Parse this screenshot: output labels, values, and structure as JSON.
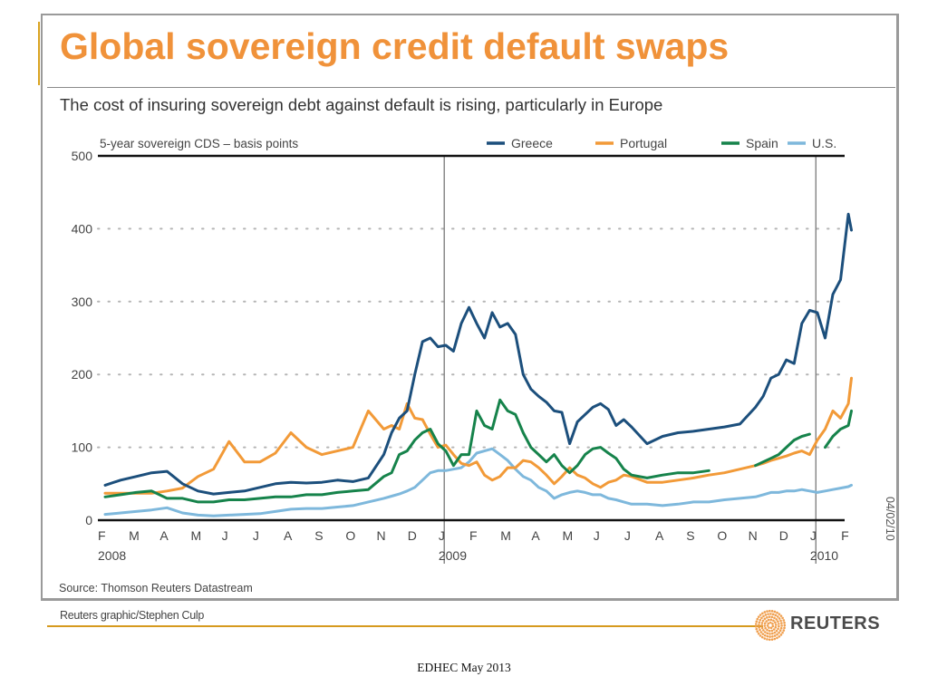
{
  "slide": {
    "footer": "EDHEC May 2013"
  },
  "graphic": {
    "title": "Global sovereign credit default swaps",
    "subtitle": "The cost of insuring sovereign debt against default is rising, particularly in Europe",
    "source": "Source: Thomson Reuters Datastream",
    "credit": "Reuters graphic/Stephen Culp",
    "logo_text": "REUTERS",
    "date_stamp": "04/02/10"
  },
  "chart_data": {
    "type": "line",
    "title": "Global sovereign credit default swaps",
    "subtitle": "The cost of insuring sovereign debt against default is rising, particularly in Europe",
    "ylabel": "5-year sovereign CDS – basis points",
    "xlabel": "",
    "ylim": [
      0,
      500
    ],
    "yticks": [
      0,
      100,
      200,
      300,
      400,
      500
    ],
    "grid": "horizontal-dotted",
    "legend_position": "top-right",
    "x_unit": "months since 1 Feb 2008",
    "xlim": [
      0,
      24.1
    ],
    "month_ticks": [
      "F",
      "M",
      "A",
      "M",
      "J",
      "J",
      "A",
      "S",
      "O",
      "N",
      "D",
      "J",
      "F",
      "M",
      "A",
      "M",
      "J",
      "J",
      "A",
      "S",
      "O",
      "N",
      "D",
      "J",
      "F"
    ],
    "year_labels": [
      {
        "label": "2008",
        "at_month": 0
      },
      {
        "label": "2009",
        "at_month": 11
      },
      {
        "label": "2010",
        "at_month": 23
      }
    ],
    "year_dividers": [
      10.6,
      22.6
    ],
    "x": [
      0,
      0.5,
      1,
      1.5,
      2,
      2.5,
      3,
      3.5,
      4,
      4.5,
      5,
      5.5,
      6,
      6.5,
      7,
      7.5,
      8,
      8.5,
      9,
      9.25,
      9.5,
      9.75,
      10,
      10.25,
      10.5,
      10.75,
      11,
      11.25,
      11.5,
      11.75,
      12,
      12.25,
      12.5,
      12.75,
      13,
      13.25,
      13.5,
      13.75,
      14,
      14.25,
      14.5,
      14.75,
      15,
      15.25,
      15.5,
      15.75,
      16,
      16.25,
      16.5,
      16.75,
      17,
      17.5,
      18,
      18.5,
      19,
      19.5,
      20,
      20.5,
      21,
      21.25,
      21.5,
      21.75,
      22,
      22.25,
      22.5,
      22.75,
      23,
      23.25,
      23.5,
      23.75,
      24,
      24.1
    ],
    "series": [
      {
        "name": "Greece",
        "color": "#1c4f7c",
        "values": [
          48,
          55,
          60,
          65,
          67,
          50,
          40,
          36,
          38,
          40,
          45,
          50,
          52,
          51,
          52,
          55,
          53,
          58,
          90,
          120,
          140,
          150,
          200,
          245,
          250,
          238,
          240,
          232,
          270,
          292,
          270,
          250,
          285,
          265,
          270,
          255,
          200,
          180,
          170,
          162,
          150,
          148,
          105,
          135,
          145,
          155,
          160,
          152,
          130,
          138,
          128,
          105,
          115,
          120,
          122,
          125,
          128,
          132,
          155,
          170,
          195,
          200,
          220,
          215,
          270,
          288,
          285,
          250,
          310,
          330,
          420,
          398
        ]
      },
      {
        "name": "Portugal",
        "color": "#f29a38",
        "values": [
          37,
          37,
          37,
          37,
          40,
          44,
          60,
          70,
          108,
          80,
          80,
          92,
          120,
          100,
          90,
          95,
          100,
          150,
          125,
          130,
          125,
          160,
          140,
          138,
          118,
          100,
          103,
          90,
          78,
          75,
          80,
          62,
          55,
          60,
          72,
          72,
          82,
          80,
          72,
          62,
          50,
          60,
          72,
          62,
          58,
          50,
          45,
          52,
          55,
          62,
          60,
          52,
          52,
          55,
          58,
          62,
          65,
          70,
          75,
          78,
          82,
          85,
          88,
          92,
          95,
          90,
          110,
          125,
          150,
          140,
          160,
          195
        ]
      },
      {
        "name": "Spain",
        "color": "#16834b",
        "values": [
          32,
          35,
          38,
          40,
          30,
          30,
          25,
          25,
          28,
          28,
          30,
          32,
          32,
          35,
          35,
          38,
          40,
          42,
          60,
          65,
          90,
          95,
          110,
          120,
          125,
          105,
          95,
          75,
          90,
          90,
          150,
          130,
          125,
          165,
          150,
          145,
          120,
          100,
          90,
          80,
          90,
          75,
          65,
          75,
          90,
          98,
          100,
          92,
          85,
          70,
          62,
          58,
          62,
          65,
          65,
          68,
          null,
          null,
          75,
          80,
          85,
          90,
          100,
          110,
          115,
          118,
          null,
          100,
          115,
          125,
          130,
          150
        ]
      },
      {
        "name": "U.S.",
        "color": "#7eb8dc",
        "values": [
          8,
          10,
          12,
          14,
          17,
          10,
          7,
          6,
          7,
          8,
          9,
          12,
          15,
          16,
          16,
          18,
          20,
          25,
          30,
          33,
          36,
          40,
          45,
          55,
          65,
          68,
          68,
          70,
          72,
          80,
          92,
          95,
          98,
          90,
          82,
          70,
          60,
          55,
          45,
          40,
          30,
          35,
          38,
          40,
          38,
          35,
          35,
          30,
          28,
          25,
          22,
          22,
          20,
          22,
          25,
          25,
          28,
          30,
          32,
          35,
          38,
          38,
          40,
          40,
          42,
          40,
          38,
          40,
          42,
          44,
          46,
          48
        ]
      }
    ]
  }
}
